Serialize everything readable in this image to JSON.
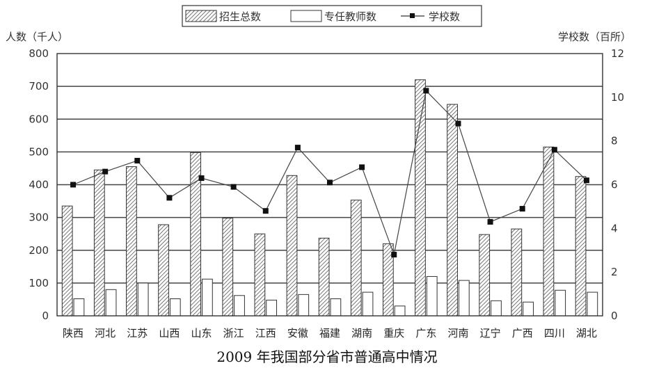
{
  "chart_data": {
    "type": "bar",
    "caption": "2009 年我国部分省市普通高中情况",
    "left_axis": {
      "label": "人数（千人）",
      "ylim": [
        0,
        800
      ],
      "ticks": [
        0,
        100,
        200,
        300,
        400,
        500,
        600,
        700,
        800
      ]
    },
    "right_axis": {
      "label": "学校数（百所）",
      "ylim": [
        0,
        12
      ],
      "ticks": [
        0,
        2,
        4,
        6,
        8,
        10,
        12
      ]
    },
    "categories": [
      "陕西",
      "河北",
      "江苏",
      "山西",
      "山东",
      "浙江",
      "江西",
      "安徽",
      "福建",
      "湖南",
      "重庆",
      "广东",
      "河南",
      "辽宁",
      "广西",
      "四川",
      "湖北"
    ],
    "series": [
      {
        "name": "招生总数",
        "kind": "bar",
        "axis": "left",
        "pattern": "hatch",
        "values": [
          335,
          445,
          455,
          278,
          498,
          298,
          250,
          428,
          237,
          353,
          220,
          720,
          645,
          248,
          265,
          515,
          425
        ]
      },
      {
        "name": "专任教师数",
        "kind": "bar",
        "axis": "left",
        "pattern": "white",
        "values": [
          52,
          80,
          100,
          52,
          112,
          62,
          48,
          65,
          52,
          72,
          30,
          120,
          108,
          46,
          42,
          78,
          72
        ]
      },
      {
        "name": "学校数",
        "kind": "line",
        "axis": "right",
        "values": [
          6.0,
          6.6,
          7.1,
          5.4,
          6.3,
          5.9,
          4.8,
          7.7,
          6.1,
          6.8,
          2.8,
          10.3,
          8.8,
          4.3,
          4.9,
          7.6,
          6.2
        ]
      }
    ],
    "grid": true,
    "legend_position": "top"
  }
}
